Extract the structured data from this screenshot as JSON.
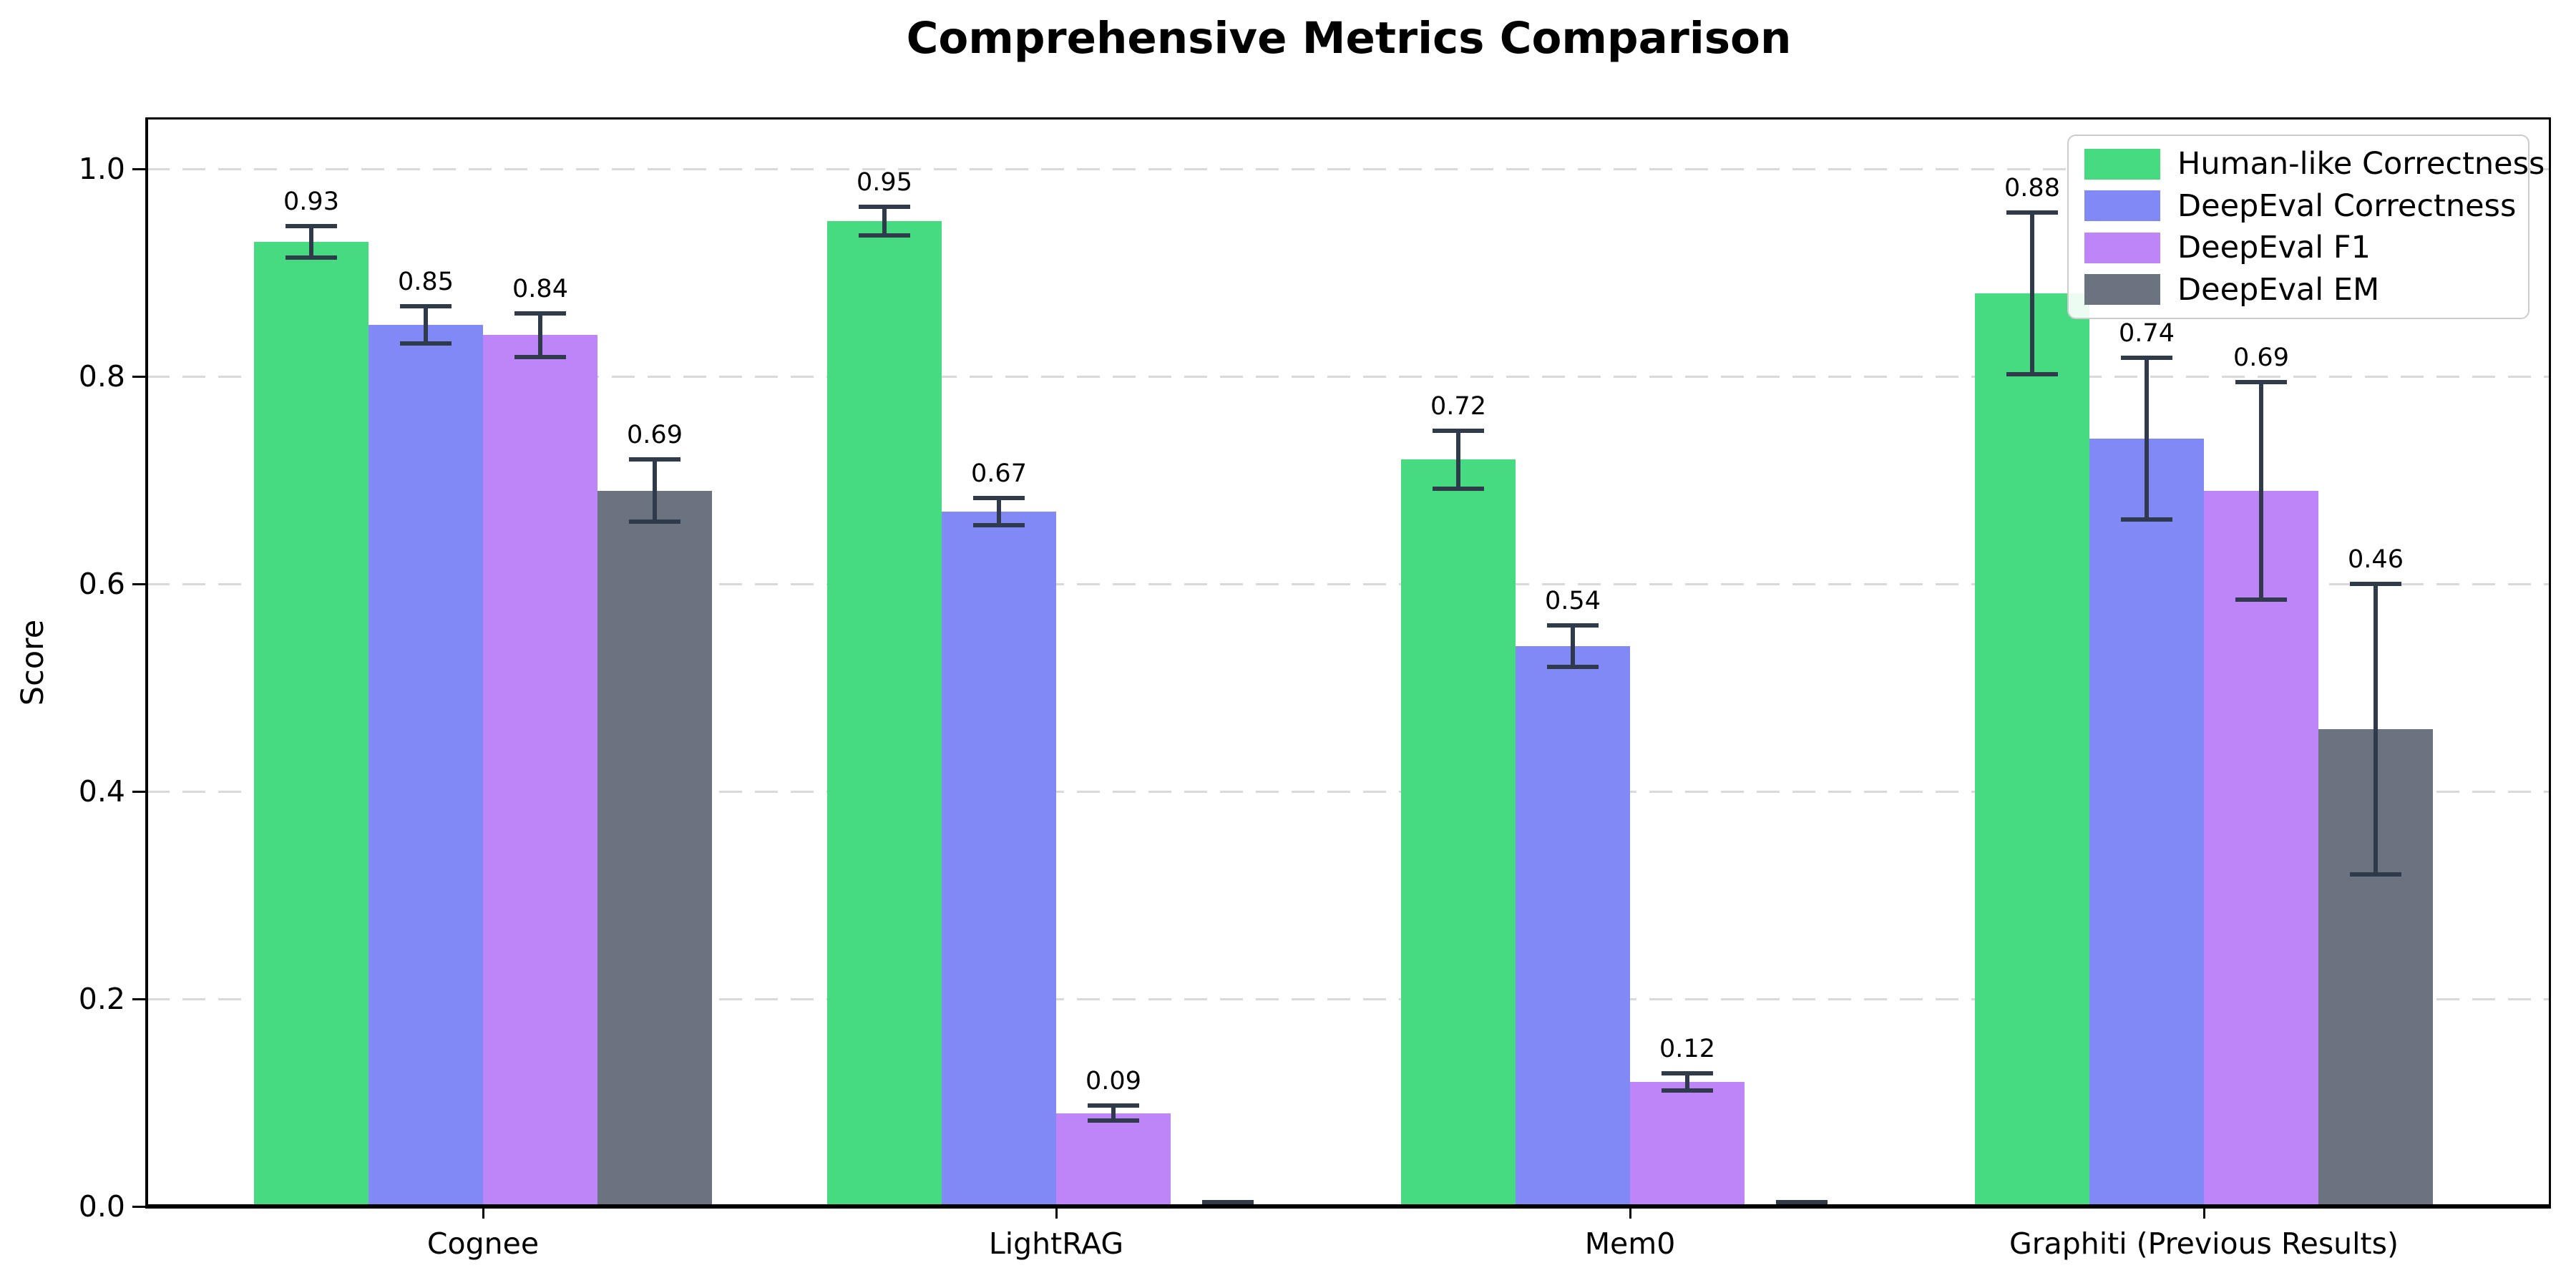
{
  "chart_data": {
    "type": "bar",
    "title": "Comprehensive Metrics Comparison",
    "xlabel": "",
    "ylabel": "Score",
    "categories": [
      "Cognee",
      "LightRAG",
      "Mem0",
      "Graphiti (Previous Results)"
    ],
    "series": [
      {
        "name": "Human-like Correctness",
        "color": "#46db80",
        "values": [
          0.93,
          0.95,
          0.72,
          0.88
        ],
        "errors": [
          0.015,
          0.014,
          0.028,
          0.078
        ],
        "labels": [
          "0.93",
          "0.95",
          "0.72",
          "0.88"
        ]
      },
      {
        "name": "DeepEval Correctness",
        "color": "#8089f5",
        "values": [
          0.85,
          0.67,
          0.54,
          0.74
        ],
        "errors": [
          0.018,
          0.013,
          0.02,
          0.078
        ],
        "labels": [
          "0.85",
          "0.67",
          "0.54",
          "0.74"
        ]
      },
      {
        "name": "DeepEval F1",
        "color": "#bd85f7",
        "values": [
          0.84,
          0.09,
          0.12,
          0.69
        ],
        "errors": [
          0.021,
          0.007,
          0.008,
          0.105
        ],
        "labels": [
          "0.84",
          "0.09",
          "0.12",
          "0.69"
        ]
      },
      {
        "name": "DeepEval EM",
        "color": "#6b7280",
        "values": [
          0.69,
          0.0,
          0.0,
          0.46
        ],
        "errors": [
          0.03,
          0.004,
          0.004,
          0.14
        ],
        "labels": [
          "0.69",
          null,
          null,
          "0.46"
        ]
      }
    ],
    "yticks": [
      0.0,
      0.2,
      0.4,
      0.6,
      0.8,
      1.0
    ],
    "ytick_labels": [
      "0.0",
      "0.2",
      "0.4",
      "0.6",
      "0.8",
      "1.0"
    ],
    "ylim": [
      0,
      1.05
    ],
    "grid": "horizontal-dashed",
    "legend_position": "upper-right",
    "colors": {
      "error_bar": "#2f3b4b",
      "grid": "#d9d9d9",
      "axis": "#000000",
      "background": "#ffffff",
      "legend_border": "#cccccc",
      "text": "#000000"
    }
  }
}
